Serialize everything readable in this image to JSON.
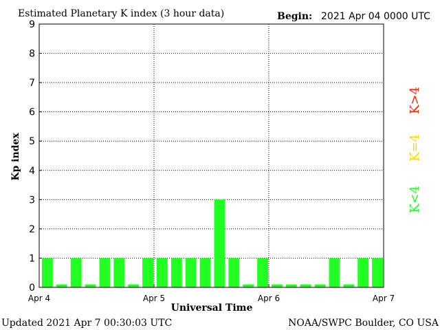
{
  "header": {
    "title": "Estimated Planetary K index (3 hour data)",
    "begin_label": "Begin:",
    "begin_value": "2021 Apr 04 0000 UTC"
  },
  "footer": {
    "updated": "Updated 2021 Apr  7 00:30:03 UTC",
    "source": "NOAA/SWPC Boulder, CO USA"
  },
  "legend": {
    "high": {
      "label": "K>4",
      "color": "#ff2200"
    },
    "mid": {
      "label": "K=4",
      "color": "#ffd700"
    },
    "low": {
      "label": "K<4",
      "color": "#22ff22"
    }
  },
  "chart_data": {
    "type": "bar",
    "title": "Estimated Planetary K index (3 hour data)",
    "xlabel": "Universal Time",
    "ylabel": "Kp index",
    "ylim": [
      0,
      9
    ],
    "yticks": [
      "0",
      "1",
      "2",
      "3",
      "4",
      "5",
      "6",
      "7",
      "8",
      "9"
    ],
    "xticks": [
      "Apr 4",
      "Apr 5",
      "Apr 6",
      "Apr 7"
    ],
    "grid": true,
    "bar_color": "#22ff22",
    "values": [
      1,
      0.1,
      1,
      0.1,
      1,
      1,
      0.1,
      1,
      1,
      1,
      1,
      1,
      3,
      1,
      0.1,
      1,
      0.1,
      0.1,
      0.1,
      0.1,
      1,
      0.1,
      1,
      1
    ]
  }
}
